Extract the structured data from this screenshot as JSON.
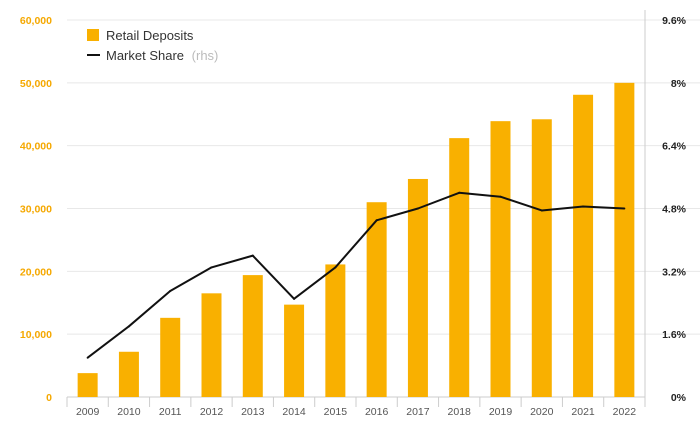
{
  "chart_data": {
    "type": "bar+line",
    "categories": [
      "2009",
      "2010",
      "2011",
      "2012",
      "2013",
      "2014",
      "2015",
      "2016",
      "2017",
      "2018",
      "2019",
      "2020",
      "2021",
      "2022"
    ],
    "series": [
      {
        "name": "Retail Deposits",
        "axis": "left",
        "kind": "bar",
        "color": "#f9b000",
        "values": [
          3800,
          7200,
          12600,
          16500,
          19400,
          14700,
          21100,
          31000,
          34700,
          41200,
          43900,
          44200,
          48100,
          50000
        ]
      },
      {
        "name": "Market Share",
        "axis_suffix": "(rhs)",
        "axis": "right",
        "kind": "line",
        "color": "#111111",
        "values": [
          1.0,
          1.8,
          2.7,
          3.3,
          3.6,
          2.5,
          3.3,
          4.5,
          4.8,
          5.2,
          5.1,
          4.75,
          4.85,
          4.8
        ]
      }
    ],
    "left_axis": {
      "ylim": [
        0,
        60000
      ],
      "ticks": [
        0,
        10000,
        20000,
        30000,
        40000,
        50000,
        60000
      ],
      "tick_labels": [
        "0",
        "10,000",
        "20,000",
        "30,000",
        "40,000",
        "50,000",
        "60,000"
      ],
      "color": "#f5a800"
    },
    "right_axis": {
      "ylim": [
        0,
        9.6
      ],
      "ticks": [
        0,
        1.6,
        3.2,
        4.8,
        6.4,
        8,
        9.6
      ],
      "tick_labels": [
        "0%",
        "1.6%",
        "3.2%",
        "4.8%",
        "6.4%",
        "8%",
        "9.6%"
      ],
      "color": "#222222"
    },
    "grid": true,
    "legend_position": "top-left"
  }
}
